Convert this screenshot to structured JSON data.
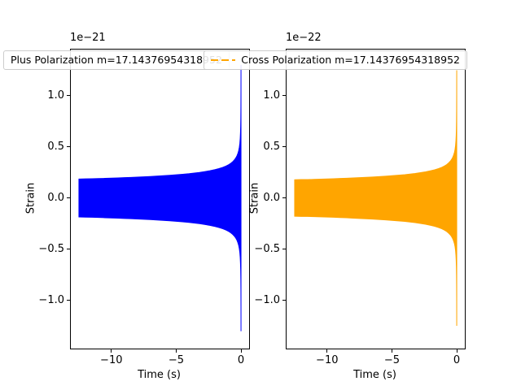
{
  "figure": {
    "background": "#ffffff"
  },
  "chart_data": {
    "type": "area",
    "description": "Two gravitational-wave polarization strain chirp waveforms vs time",
    "subplots": [
      {
        "name": "plus-polarization",
        "legend_label": "Plus Polarization m=17.14376954318952",
        "color": "#0000ff",
        "offset_text": "1e−21",
        "units_scale": "1e-21",
        "xlabel": "Time (s)",
        "ylabel": "Strain",
        "xlim": [
          -13.125,
          0.625
        ],
        "ylim": [
          -1.47,
          1.45
        ],
        "xticks": [
          -10,
          -5,
          0
        ],
        "xtick_labels": [
          "−10",
          "−5",
          "0"
        ],
        "yticks": [
          1.0,
          0.5,
          0.0,
          -0.5,
          -1.0
        ],
        "ytick_labels": [
          "1.0",
          "0.5",
          "0.0",
          "−0.5",
          "−1.0"
        ],
        "grid": false,
        "envelope_t": [
          -12.5,
          -12,
          -11.5,
          -11,
          -10.5,
          -10,
          -9.5,
          -9,
          -8.5,
          -8,
          -7.5,
          -7,
          -6.5,
          -6,
          -5.5,
          -5,
          -4.5,
          -4,
          -3.6,
          -3.2,
          -2.8,
          -2.4,
          -2.0,
          -1.7,
          -1.4,
          -1.15,
          -0.95,
          -0.78,
          -0.63,
          -0.5,
          -0.4,
          -0.31,
          -0.24,
          -0.18,
          -0.13,
          -0.09,
          -0.06,
          -0.04,
          -0.025,
          -0.015,
          -0.008,
          -0.003,
          0
        ],
        "envelope_amp": [
          0.185,
          0.187,
          0.188,
          0.19,
          0.192,
          0.194,
          0.196,
          0.199,
          0.201,
          0.204,
          0.207,
          0.21,
          0.214,
          0.218,
          0.222,
          0.227,
          0.232,
          0.238,
          0.244,
          0.25,
          0.258,
          0.267,
          0.278,
          0.288,
          0.3,
          0.313,
          0.326,
          0.34,
          0.356,
          0.374,
          0.392,
          0.413,
          0.436,
          0.462,
          0.494,
          0.533,
          0.582,
          0.638,
          0.705,
          0.79,
          0.9,
          1.06,
          1.3
        ]
      },
      {
        "name": "cross-polarization",
        "legend_label": "Cross Polarization m=17.14376954318952",
        "color": "#ffa500",
        "offset_text": "1e−22",
        "units_scale": "1e-22",
        "xlabel": "Time (s)",
        "ylabel": "Strain",
        "xlim": [
          -13.125,
          0.625
        ],
        "ylim": [
          -1.47,
          1.45
        ],
        "xticks": [
          -10,
          -5,
          0
        ],
        "xtick_labels": [
          "−10",
          "−5",
          "0"
        ],
        "yticks": [
          1.0,
          0.5,
          0.0,
          -0.5,
          -1.0
        ],
        "ytick_labels": [
          "1.0",
          "0.5",
          "0.0",
          "−0.5",
          "−1.0"
        ],
        "grid": false,
        "envelope_t": [
          -12.5,
          -12,
          -11.5,
          -11,
          -10.5,
          -10,
          -9.5,
          -9,
          -8.5,
          -8,
          -7.5,
          -7,
          -6.5,
          -6,
          -5.5,
          -5,
          -4.5,
          -4,
          -3.6,
          -3.2,
          -2.8,
          -2.4,
          -2.0,
          -1.7,
          -1.4,
          -1.15,
          -0.95,
          -0.78,
          -0.63,
          -0.5,
          -0.4,
          -0.31,
          -0.24,
          -0.18,
          -0.13,
          -0.09,
          -0.06,
          -0.04,
          -0.025,
          -0.015,
          -0.008,
          -0.003,
          0
        ],
        "envelope_amp": [
          0.178,
          0.18,
          0.18,
          0.182,
          0.184,
          0.186,
          0.188,
          0.191,
          0.193,
          0.196,
          0.199,
          0.202,
          0.205,
          0.209,
          0.213,
          0.218,
          0.223,
          0.228,
          0.234,
          0.24,
          0.248,
          0.256,
          0.267,
          0.276,
          0.288,
          0.3,
          0.313,
          0.326,
          0.342,
          0.359,
          0.376,
          0.397,
          0.419,
          0.444,
          0.474,
          0.512,
          0.559,
          0.612,
          0.677,
          0.758,
          0.864,
          1.018,
          1.248
        ]
      }
    ]
  }
}
